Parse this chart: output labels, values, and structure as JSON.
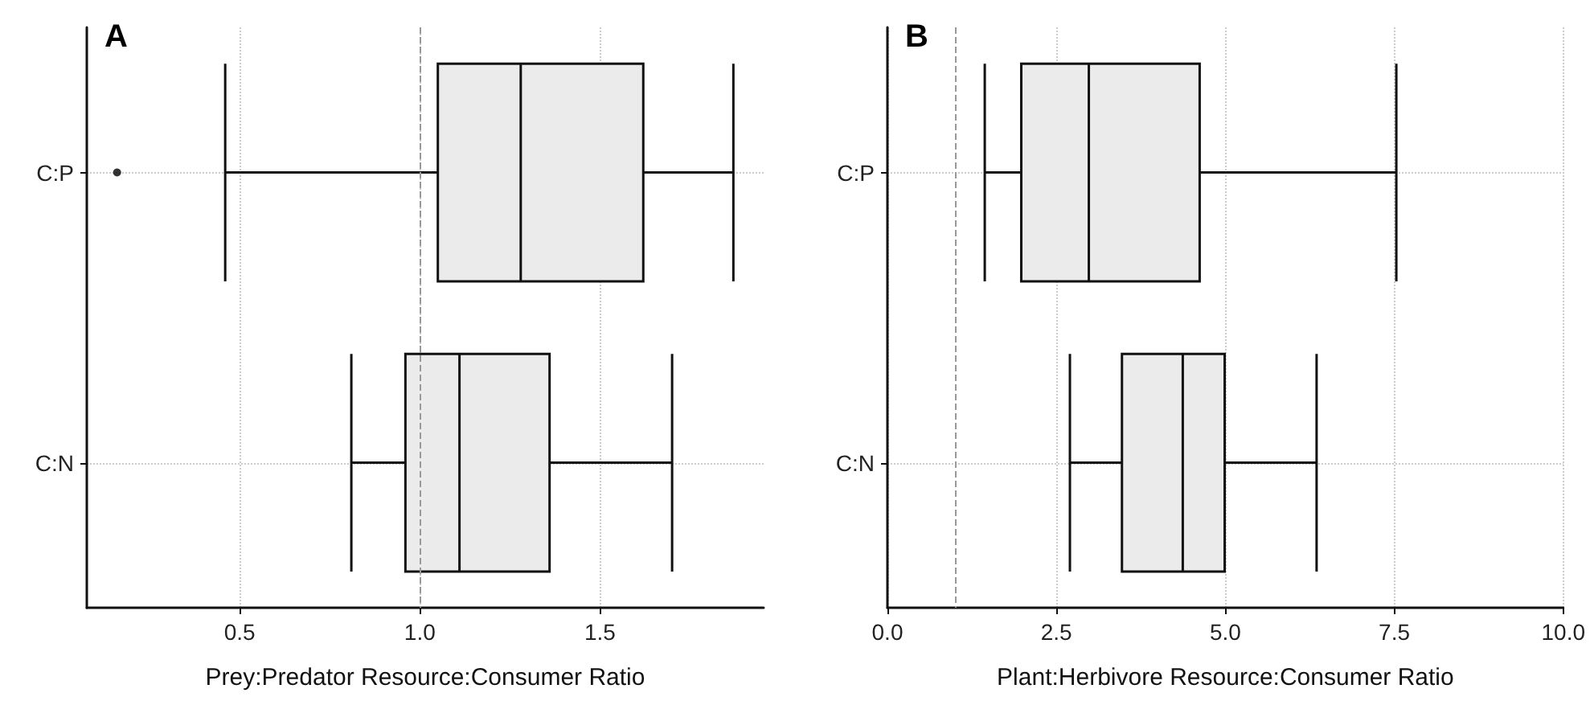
{
  "chart_data": [
    {
      "type": "box",
      "orientation": "horizontal",
      "title": "A",
      "xlabel": "Prey:Predator Resource:Consumer Ratio",
      "categories": [
        "C:P",
        "C:N"
      ],
      "xlim": [
        0.076,
        1.954
      ],
      "xticks": [
        0.5,
        {
          "value": 1,
          "label": "1.0"
        },
        1.5
      ],
      "grid": true,
      "color": "#ebebeb",
      "boxes": [
        {
          "low": 0.46,
          "q1": 1.05,
          "median": 1.28,
          "q3": 1.62,
          "high": 1.87,
          "outliers": [
            0.16
          ]
        },
        {
          "low": 0.81,
          "q1": 0.96,
          "median": 1.11,
          "q3": 1.36,
          "high": 1.7
        }
      ],
      "ref_lines": [
        {
          "axis": "x",
          "value": 1,
          "color": "#999999",
          "line_style": "dashed"
        }
      ]
    },
    {
      "type": "box",
      "orientation": "horizontal",
      "title": "B",
      "xlabel": "Plant:Herbivore Resource:Consumer Ratio",
      "categories": [
        "C:P",
        "C:N"
      ],
      "xlim": [
        0,
        10
      ],
      "xticks": [
        {
          "value": 0,
          "label": "0.0"
        },
        {
          "value": 2.5,
          "label": "2.5"
        },
        {
          "value": 5,
          "label": "5.0"
        },
        {
          "value": 7.5,
          "label": "7.5"
        },
        {
          "value": 10,
          "label": "10.0"
        }
      ],
      "grid": true,
      "color": "#ebebeb",
      "boxes": [
        {
          "low": 1.44,
          "q1": 1.98,
          "median": 2.98,
          "q3": 4.62,
          "high": 7.53
        },
        {
          "low": 2.7,
          "q1": 3.47,
          "median": 4.37,
          "q3": 4.99,
          "high": 6.35
        }
      ],
      "ref_lines": [
        {
          "axis": "x",
          "value": 1,
          "color": "#999999",
          "line_style": "dashed"
        }
      ]
    }
  ]
}
